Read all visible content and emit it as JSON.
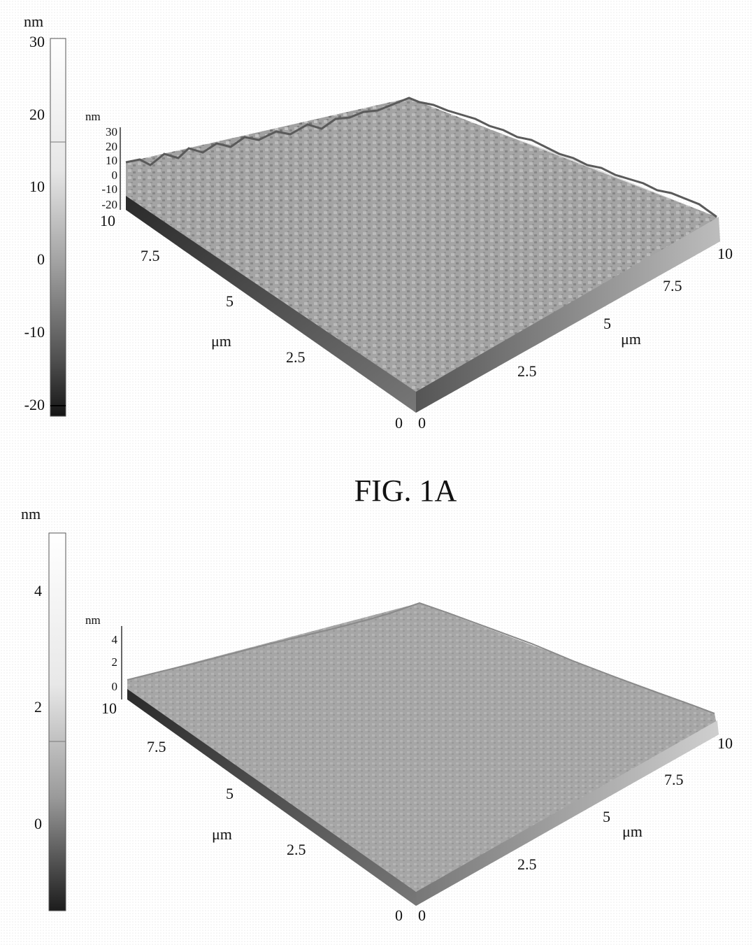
{
  "figures": [
    {
      "id": "fig-1a",
      "caption": "FIG. 1A",
      "colorbar": {
        "unit": "nm",
        "ticks": [
          "30",
          "20",
          "10",
          "0",
          "-10",
          "-20"
        ],
        "range": [
          -21,
          30
        ]
      },
      "surface": {
        "z_unit": "nm",
        "z_ticks": [
          "30",
          "20",
          "10",
          "0",
          "-10",
          "-20"
        ],
        "left_axis": {
          "unit": "μm",
          "ticks": [
            "0",
            "2.5",
            "5",
            "7.5",
            "10"
          ]
        },
        "right_axis": {
          "unit": "μm",
          "ticks": [
            "0",
            "2.5",
            "5",
            "7.5",
            "10"
          ]
        },
        "roughness": "high"
      }
    },
    {
      "id": "fig-1b",
      "caption": "",
      "colorbar": {
        "unit": "nm",
        "ticks": [
          "4",
          "2",
          "0"
        ],
        "range": [
          -1.5,
          5
        ]
      },
      "surface": {
        "z_unit": "nm",
        "z_ticks": [
          "4",
          "2",
          "0"
        ],
        "left_axis": {
          "unit": "μm",
          "ticks": [
            "0",
            "2.5",
            "5",
            "7.5",
            "10"
          ]
        },
        "right_axis": {
          "unit": "μm",
          "ticks": [
            "0",
            "2.5",
            "5",
            "7.5",
            "10"
          ]
        },
        "roughness": "low"
      }
    }
  ]
}
